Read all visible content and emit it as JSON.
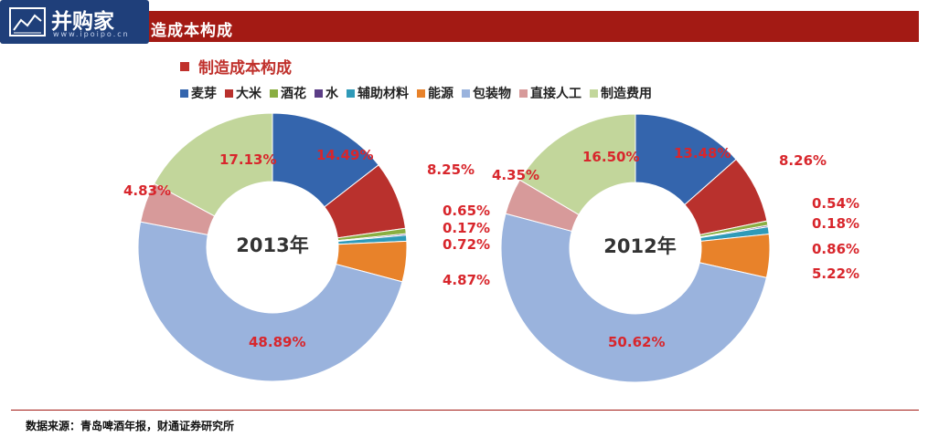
{
  "header": {
    "logo_text": "并购家",
    "logo_sub": "www.ipoipo.cn",
    "title": "造成本构成"
  },
  "chart_data": {
    "type": "pie",
    "title": "制造成本构成",
    "legend": [
      "麦芽",
      "大米",
      "酒花",
      "水",
      "辅助材料",
      "能源",
      "包装物",
      "直接人工",
      "制造费用"
    ],
    "colors": [
      "#3465ad",
      "#b9312d",
      "#8aae42",
      "#5b3d86",
      "#2f9ab8",
      "#e8822a",
      "#9ab3dd",
      "#d79a9a",
      "#c2d69b"
    ],
    "charts": [
      {
        "center_label": "2013年",
        "values": [
          14.49,
          8.25,
          0.65,
          0.17,
          0.72,
          4.87,
          48.89,
          4.83,
          17.13
        ],
        "labels": [
          "14.49%",
          "8.25%",
          "0.65%",
          "0.17%",
          "0.72%",
          "4.87%",
          "48.89%",
          "4.83%",
          "17.13%"
        ]
      },
      {
        "center_label": "2012年",
        "values": [
          13.48,
          8.26,
          0.54,
          0.18,
          0.86,
          5.22,
          50.62,
          4.35,
          16.5
        ],
        "labels": [
          "13.48%",
          "8.26%",
          "0.54%",
          "0.18%",
          "0.86%",
          "5.22%",
          "50.62%",
          "4.35%",
          "16.50%"
        ]
      }
    ]
  },
  "footer": {
    "source": "数据来源：青岛啤酒年报，财通证券研究所"
  }
}
